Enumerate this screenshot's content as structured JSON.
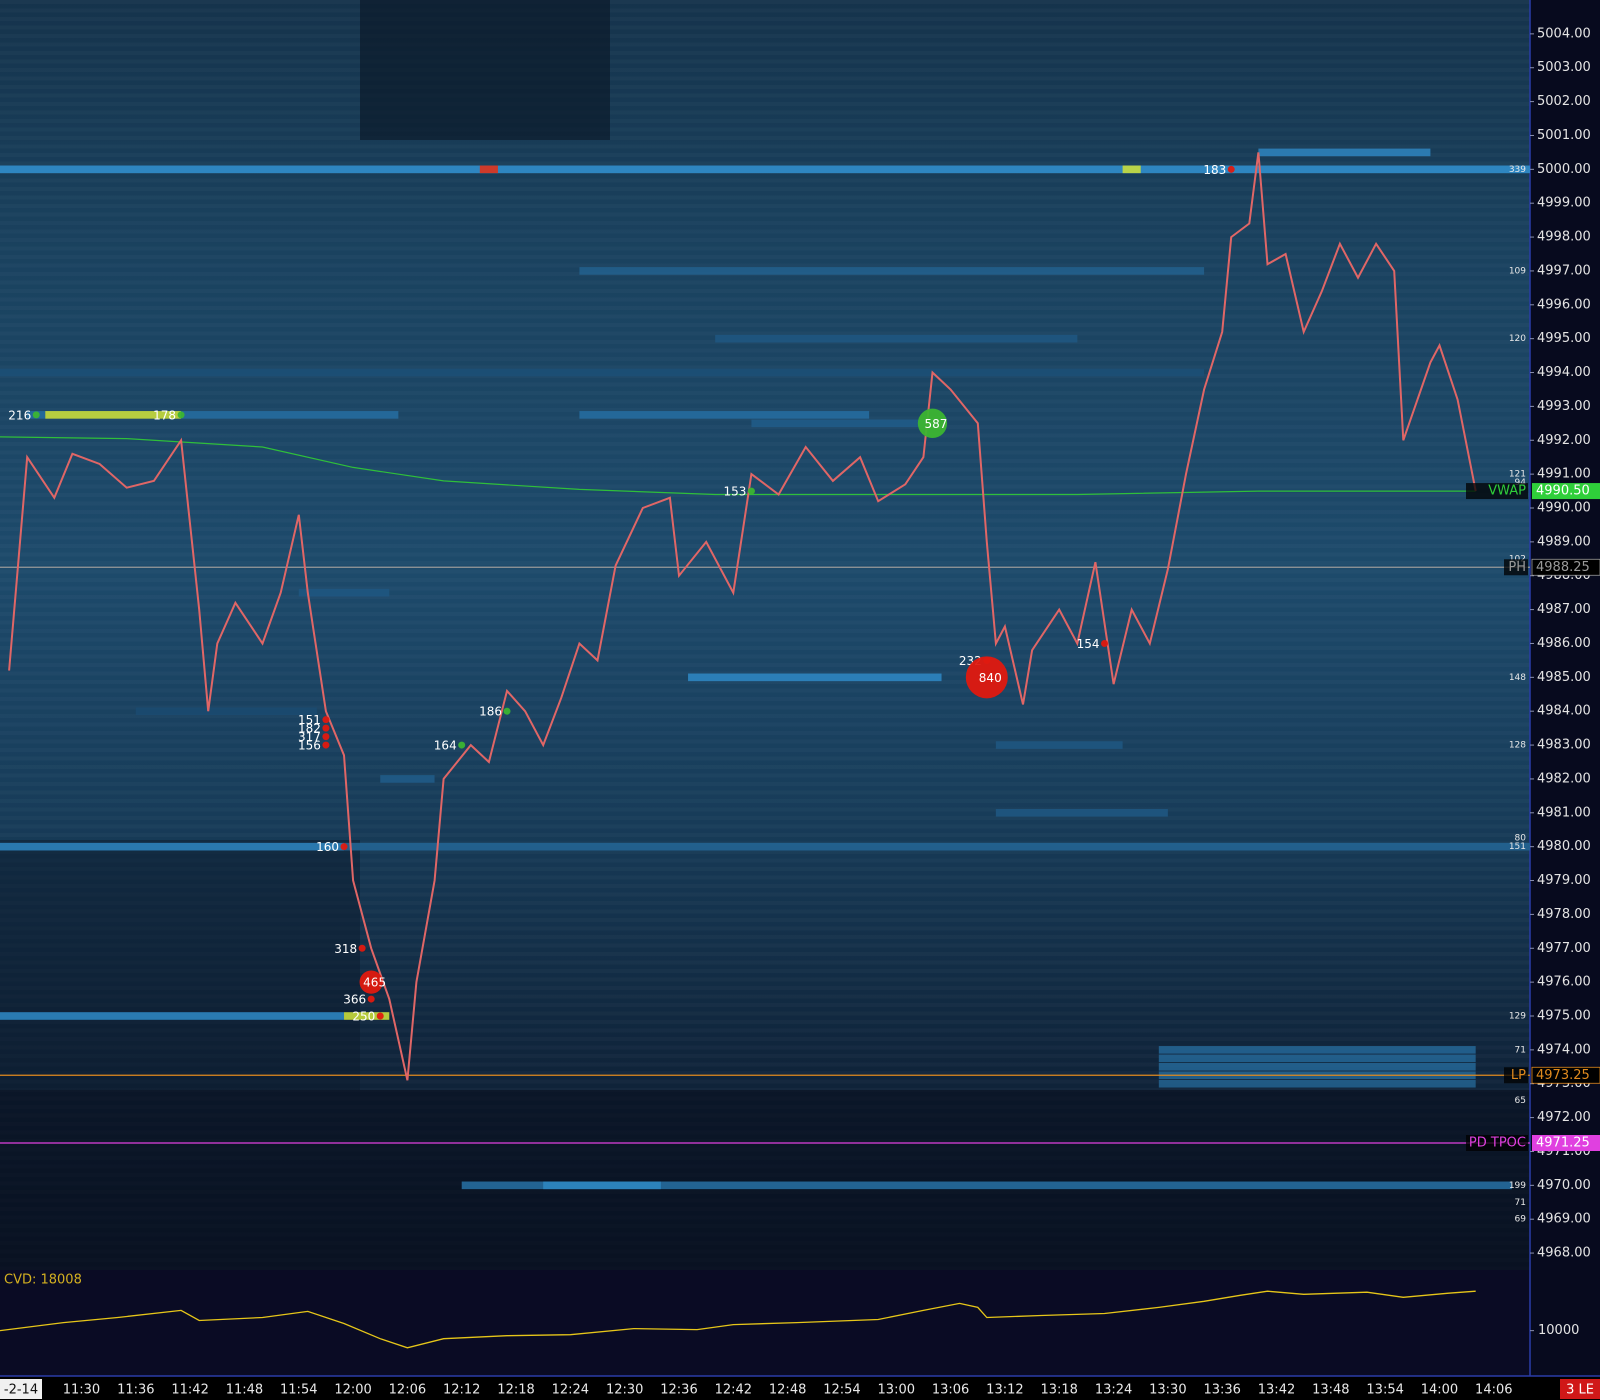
{
  "chart_data": {
    "type": "heatmap",
    "x_start_label": "-2-14",
    "status_label": "3 LE",
    "xlim": [
      "11:21",
      "14:10"
    ],
    "xticks": [
      "11:30",
      "11:36",
      "11:42",
      "11:48",
      "11:54",
      "12:00",
      "12:06",
      "12:12",
      "12:18",
      "12:24",
      "12:30",
      "12:36",
      "12:42",
      "12:48",
      "12:54",
      "13:00",
      "13:06",
      "13:12",
      "13:18",
      "13:24",
      "13:30",
      "13:36",
      "13:42",
      "13:48",
      "13:54",
      "14:00",
      "14:06"
    ],
    "ylim": [
      4967.5,
      5005
    ],
    "yticks": [
      {
        "value": 5004,
        "label": "5004.00"
      },
      {
        "value": 5003,
        "label": "5003.00"
      },
      {
        "value": 5002,
        "label": "5002.00"
      },
      {
        "value": 5001,
        "label": "5001.00"
      },
      {
        "value": 5000,
        "label": "5000.00"
      },
      {
        "value": 4999,
        "label": "4999.00"
      },
      {
        "value": 4998,
        "label": "4998.00"
      },
      {
        "value": 4997,
        "label": "4997.00"
      },
      {
        "value": 4996,
        "label": "4996.00"
      },
      {
        "value": 4995,
        "label": "4995.00"
      },
      {
        "value": 4994,
        "label": "4994.00"
      },
      {
        "value": 4993,
        "label": "4993.00"
      },
      {
        "value": 4992,
        "label": "4992.00"
      },
      {
        "value": 4991,
        "label": "4991.00"
      },
      {
        "value": 4990,
        "label": "4990.00"
      },
      {
        "value": 4989,
        "label": "4989.00"
      },
      {
        "value": 4988,
        "label": "4988.00"
      },
      {
        "value": 4987,
        "label": "4987.00"
      },
      {
        "value": 4986,
        "label": "4986.00"
      },
      {
        "value": 4985,
        "label": "4985.00"
      },
      {
        "value": 4984,
        "label": "4984.00"
      },
      {
        "value": 4983,
        "label": "4983.00"
      },
      {
        "value": 4982,
        "label": "4982.00"
      },
      {
        "value": 4981,
        "label": "4981.00"
      },
      {
        "value": 4980,
        "label": "4980.00"
      },
      {
        "value": 4979,
        "label": "4979.00"
      },
      {
        "value": 4978,
        "label": "4978.00"
      },
      {
        "value": 4977,
        "label": "4977.00"
      },
      {
        "value": 4976,
        "label": "4976.00"
      },
      {
        "value": 4975,
        "label": "4975.00"
      },
      {
        "value": 4974,
        "label": "4974.00"
      },
      {
        "value": 4973,
        "label": "4973.00"
      },
      {
        "value": 4972,
        "label": "4972.00"
      },
      {
        "value": 4971,
        "label": "4971.00"
      },
      {
        "value": 4970,
        "label": "4970.00"
      },
      {
        "value": 4969,
        "label": "4969.00"
      },
      {
        "value": 4968,
        "label": "4968.00"
      }
    ],
    "price": {
      "color": "#e06666",
      "x": [
        "11:22",
        "11:24",
        "11:27",
        "11:29",
        "11:32",
        "11:35",
        "11:38",
        "11:41",
        "11:43",
        "11:44",
        "11:45",
        "11:47",
        "11:50",
        "11:52",
        "11:54",
        "11:55",
        "11:57",
        "11:59",
        "12:00",
        "12:02",
        "12:04",
        "12:06",
        "12:07",
        "12:09",
        "12:10",
        "12:13",
        "12:15",
        "12:17",
        "12:19",
        "12:21",
        "12:23",
        "12:25",
        "12:27",
        "12:29",
        "12:32",
        "12:35",
        "12:36",
        "12:39",
        "12:42",
        "12:44",
        "12:47",
        "12:50",
        "12:53",
        "12:56",
        "12:58",
        "13:01",
        "13:03",
        "13:04",
        "13:06",
        "13:09",
        "13:10",
        "13:11",
        "13:12",
        "13:14",
        "13:15",
        "13:18",
        "13:20",
        "13:22",
        "13:24",
        "13:26",
        "13:28",
        "13:30",
        "13:32",
        "13:34",
        "13:36",
        "13:37",
        "13:39",
        "13:40",
        "13:41",
        "13:43",
        "13:45",
        "13:47",
        "13:49",
        "13:51",
        "13:53",
        "13:55",
        "13:56",
        "13:59",
        "14:00",
        "14:02",
        "14:04"
      ],
      "values": [
        4985.2,
        4991.5,
        4990.3,
        4991.6,
        4991.3,
        4990.6,
        4990.8,
        4992,
        4987,
        4984,
        4986,
        4987.2,
        4986,
        4987.5,
        4989.8,
        4987.5,
        4984,
        4982.7,
        4979,
        4977,
        4975.5,
        4973.1,
        4976,
        4979,
        4982,
        4983,
        4982.5,
        4984.6,
        4984,
        4983,
        4984.4,
        4986,
        4985.5,
        4988.3,
        4990,
        4990.3,
        4988,
        4989,
        4987.5,
        4991,
        4990.4,
        4991.8,
        4990.8,
        4991.5,
        4990.2,
        4990.7,
        4991.5,
        4994,
        4993.5,
        4992.5,
        4989,
        4986,
        4986.5,
        4984.2,
        4985.8,
        4987,
        4986,
        4988.4,
        4984.8,
        4987,
        4986,
        4988.2,
        4991,
        4993.5,
        4995.2,
        4998,
        4998.4,
        5000.5,
        4997.2,
        4997.5,
        4995.2,
        4996.4,
        4997.8,
        4996.8,
        4997.8,
        4997,
        4992,
        4994.3,
        4994.8,
        4993.2,
        4990.5
      ]
    },
    "vwap_curve": {
      "color": "#2fbf3a",
      "x": [
        "11:21",
        "11:35",
        "11:50",
        "12:00",
        "12:10",
        "12:25",
        "12:40",
        "13:00",
        "13:20",
        "13:40",
        "14:04"
      ],
      "values": [
        4992.1,
        4992.05,
        4991.8,
        4991.2,
        4990.8,
        4990.55,
        4990.4,
        4990.4,
        4990.4,
        4990.5,
        4990.5
      ]
    },
    "levels": [
      {
        "name": "VWAP",
        "value": 4990.5,
        "value_label": "4990.50",
        "color": "#2fcf3a",
        "draw_line": false
      },
      {
        "name": "PH",
        "value": 4988.25,
        "value_label": "4988.25",
        "color": "#9a9a9a",
        "draw_line": true
      },
      {
        "name": "LP",
        "value": 4973.25,
        "value_label": "4973.25",
        "color": "#e08a1e",
        "draw_line": true
      },
      {
        "name": "PD TPOC",
        "value": 4971.25,
        "value_label": "4971.25",
        "color": "#e040e0",
        "draw_line": true
      }
    ],
    "liquidity": [
      {
        "price": 5000,
        "start": "11:21",
        "end": "14:10",
        "size": 280
      },
      {
        "price": 5000.5,
        "start": "13:40",
        "end": "13:59",
        "size": 250
      },
      {
        "price": 5000,
        "start": "12:14",
        "end": "12:16",
        "size": 600
      },
      {
        "price": 5000,
        "start": "13:25",
        "end": "13:27",
        "size": 420
      },
      {
        "price": 4997,
        "start": "12:25",
        "end": "13:34",
        "size": 170
      },
      {
        "price": 4995,
        "start": "12:40",
        "end": "13:20",
        "size": 150
      },
      {
        "price": 4994,
        "start": "11:21",
        "end": "13:34",
        "size": 130
      },
      {
        "price": 4992.75,
        "start": "11:24",
        "end": "11:26",
        "size": 200
      },
      {
        "price": 4992.75,
        "start": "11:26",
        "end": "11:41",
        "size": 380
      },
      {
        "price": 4992.75,
        "start": "11:41",
        "end": "12:05",
        "size": 200
      },
      {
        "price": 4992.75,
        "start": "12:25",
        "end": "12:57",
        "size": 200
      },
      {
        "price": 4992.5,
        "start": "12:44",
        "end": "13:04",
        "size": 160
      },
      {
        "price": 4987.5,
        "start": "11:54",
        "end": "12:04",
        "size": 150
      },
      {
        "price": 4985,
        "start": "12:37",
        "end": "13:05",
        "size": 260
      },
      {
        "price": 4984,
        "start": "11:36",
        "end": "11:56",
        "size": 120
      },
      {
        "price": 4983,
        "start": "13:11",
        "end": "13:25",
        "size": 150
      },
      {
        "price": 4982,
        "start": "12:03",
        "end": "12:09",
        "size": 160
      },
      {
        "price": 4981,
        "start": "13:11",
        "end": "13:30",
        "size": 150
      },
      {
        "price": 4980,
        "start": "11:21",
        "end": "11:59",
        "size": 250
      },
      {
        "price": 4980,
        "start": "11:59",
        "end": "14:10",
        "size": 180
      },
      {
        "price": 4975,
        "start": "11:21",
        "end": "11:59",
        "size": 260
      },
      {
        "price": 4975,
        "start": "11:59",
        "end": "12:04",
        "size": 380
      },
      {
        "price": 4974,
        "start": "13:29",
        "end": "14:04",
        "size": 180
      },
      {
        "price": 4973.75,
        "start": "13:29",
        "end": "14:04",
        "size": 180
      },
      {
        "price": 4973.5,
        "start": "13:29",
        "end": "14:04",
        "size": 180
      },
      {
        "price": 4973.25,
        "start": "13:29",
        "end": "14:04",
        "size": 180
      },
      {
        "price": 4973,
        "start": "13:29",
        "end": "14:04",
        "size": 170
      },
      {
        "price": 4970,
        "start": "12:12",
        "end": "14:08",
        "size": 200
      },
      {
        "price": 4970,
        "start": "12:21",
        "end": "12:34",
        "size": 260
      }
    ],
    "trades": [
      {
        "time": "11:25",
        "price": 4992.75,
        "size": 216,
        "side": "buy"
      },
      {
        "time": "11:41",
        "price": 4992.75,
        "size": 178,
        "side": "buy"
      },
      {
        "time": "11:57",
        "price": 4983.75,
        "size": 151,
        "side": "sell"
      },
      {
        "time": "11:57",
        "price": 4983.5,
        "size": 182,
        "side": "sell"
      },
      {
        "time": "11:57",
        "price": 4983.25,
        "size": 317,
        "side": "sell"
      },
      {
        "time": "11:57",
        "price": 4983,
        "size": 156,
        "side": "sell"
      },
      {
        "time": "11:59",
        "price": 4980,
        "size": 160,
        "side": "sell"
      },
      {
        "time": "12:01",
        "price": 4977,
        "size": 318,
        "side": "sell"
      },
      {
        "time": "12:02",
        "price": 4976,
        "size": 465,
        "side": "sell"
      },
      {
        "time": "12:02",
        "price": 4975.5,
        "size": 366,
        "side": "sell"
      },
      {
        "time": "12:03",
        "price": 4975,
        "size": 250,
        "side": "sell"
      },
      {
        "time": "12:12",
        "price": 4983,
        "size": 164,
        "side": "buy"
      },
      {
        "time": "12:17",
        "price": 4984,
        "size": 186,
        "side": "buy"
      },
      {
        "time": "12:44",
        "price": 4990.5,
        "size": 153,
        "side": "buy"
      },
      {
        "time": "13:04",
        "price": 4992.5,
        "size": 587,
        "side": "buy"
      },
      {
        "time": "13:10",
        "price": 4985.5,
        "size": 232,
        "side": "sell"
      },
      {
        "time": "13:10",
        "price": 4985,
        "size": 840,
        "side": "sell"
      },
      {
        "time": "13:23",
        "price": 4986,
        "size": 154,
        "side": "sell"
      },
      {
        "time": "13:37",
        "price": 5000,
        "size": 183,
        "side": "sell"
      }
    ],
    "depth_labels": [
      {
        "price": 5000,
        "size": 339
      },
      {
        "price": 4997,
        "size": 109
      },
      {
        "price": 4995,
        "size": 120
      },
      {
        "price": 4991,
        "size": 121
      },
      {
        "price": 4990.75,
        "size": 94
      },
      {
        "price": 4988.5,
        "size": 102
      },
      {
        "price": 4985,
        "size": 148
      },
      {
        "price": 4983,
        "size": 128
      },
      {
        "price": 4980,
        "size": 151
      },
      {
        "price": 4980.25,
        "size": 80
      },
      {
        "price": 4975,
        "size": 129
      },
      {
        "price": 4974,
        "size": 71
      },
      {
        "price": 4972.5,
        "size": 65
      },
      {
        "price": 4970,
        "size": 199
      },
      {
        "price": 4969.5,
        "size": 71
      },
      {
        "price": 4969,
        "size": 69
      }
    ],
    "cvd": {
      "label": "CVD: 18008",
      "color": "#e6c619",
      "ylim": [
        800,
        22300
      ],
      "yticks": [
        10000
      ],
      "x": [
        "11:21",
        "11:28",
        "11:34",
        "11:41",
        "11:43",
        "11:50",
        "11:55",
        "11:59",
        "12:03",
        "12:06",
        "12:10",
        "12:17",
        "12:24",
        "12:31",
        "12:38",
        "12:42",
        "12:49",
        "12:58",
        "13:03",
        "13:07",
        "13:09",
        "13:10",
        "13:16",
        "13:23",
        "13:29",
        "13:34",
        "13:38",
        "13:41",
        "13:45",
        "13:52",
        "13:56",
        "14:01",
        "14:04"
      ],
      "values": [
        10000,
        11640,
        12670,
        14100,
        12050,
        12670,
        13900,
        11440,
        8360,
        6515,
        8360,
        8975,
        9180,
        10410,
        10205,
        11230,
        11640,
        12255,
        14100,
        15535,
        14715,
        12665,
        13075,
        13485,
        14715,
        15945,
        17175,
        17995,
        17380,
        17790,
        16765,
        17585,
        18008
      ]
    }
  }
}
